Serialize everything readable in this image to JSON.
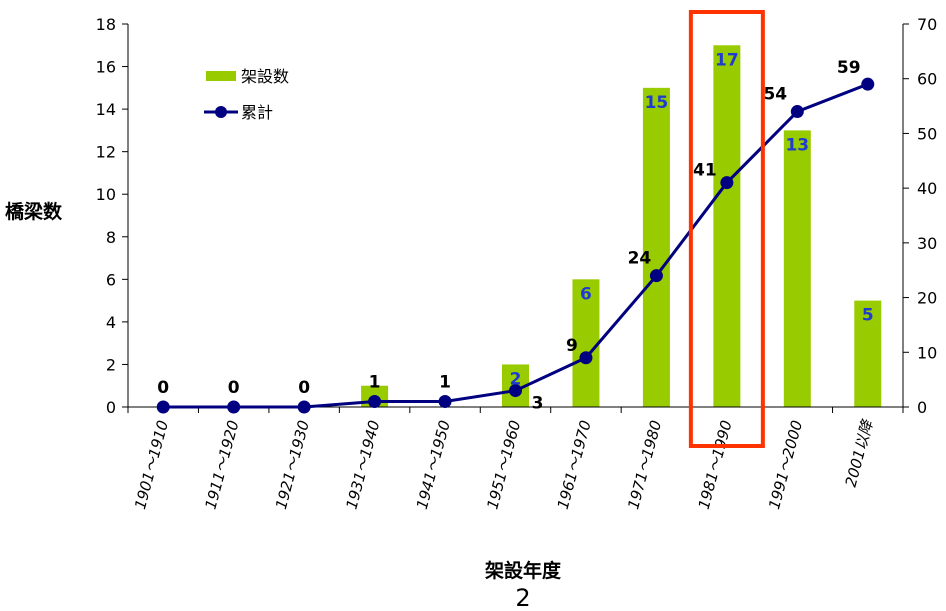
{
  "chart_data": {
    "type": "bar+line",
    "categories": [
      "1901～1910",
      "1911～1920",
      "1921～1930",
      "1931～1940",
      "1941～1950",
      "1951～1960",
      "1961～1970",
      "1971～1980",
      "1981～1990",
      "1991～2000",
      "2001以降"
    ],
    "series": [
      {
        "name": "架設数",
        "type": "bar",
        "axis": "left",
        "values": [
          0,
          0,
          0,
          1,
          0,
          2,
          6,
          15,
          17,
          13,
          5
        ],
        "color": "#99cc00"
      },
      {
        "name": "累計",
        "type": "line",
        "axis": "right",
        "values": [
          0,
          0,
          0,
          1,
          1,
          3,
          9,
          24,
          41,
          54,
          59
        ],
        "color": "#000080"
      }
    ],
    "bar_labels": [
      null,
      null,
      null,
      null,
      null,
      "2",
      "6",
      "15",
      "17",
      "13",
      "5"
    ],
    "cumulative_labels": [
      "0",
      "0",
      "0",
      "1",
      "1",
      "3",
      "9",
      "24",
      "41",
      "54",
      "59"
    ],
    "left_axis": {
      "label": "橋梁数",
      "ylim": [
        0,
        18
      ],
      "ticks": [
        "0",
        "2",
        "4",
        "6",
        "8",
        "10",
        "12",
        "14",
        "16",
        "18"
      ]
    },
    "right_axis": {
      "ylim": [
        0,
        70
      ],
      "ticks": [
        "0",
        "10",
        "20",
        "30",
        "40",
        "50",
        "60",
        "70"
      ]
    },
    "xlabel": "架設年度",
    "legend": {
      "position": "top-left",
      "items": [
        "架設数",
        "累計"
      ]
    },
    "highlight": {
      "category": "1981～1990",
      "color": "#ff3300"
    },
    "grid": false
  },
  "page_number": "2"
}
